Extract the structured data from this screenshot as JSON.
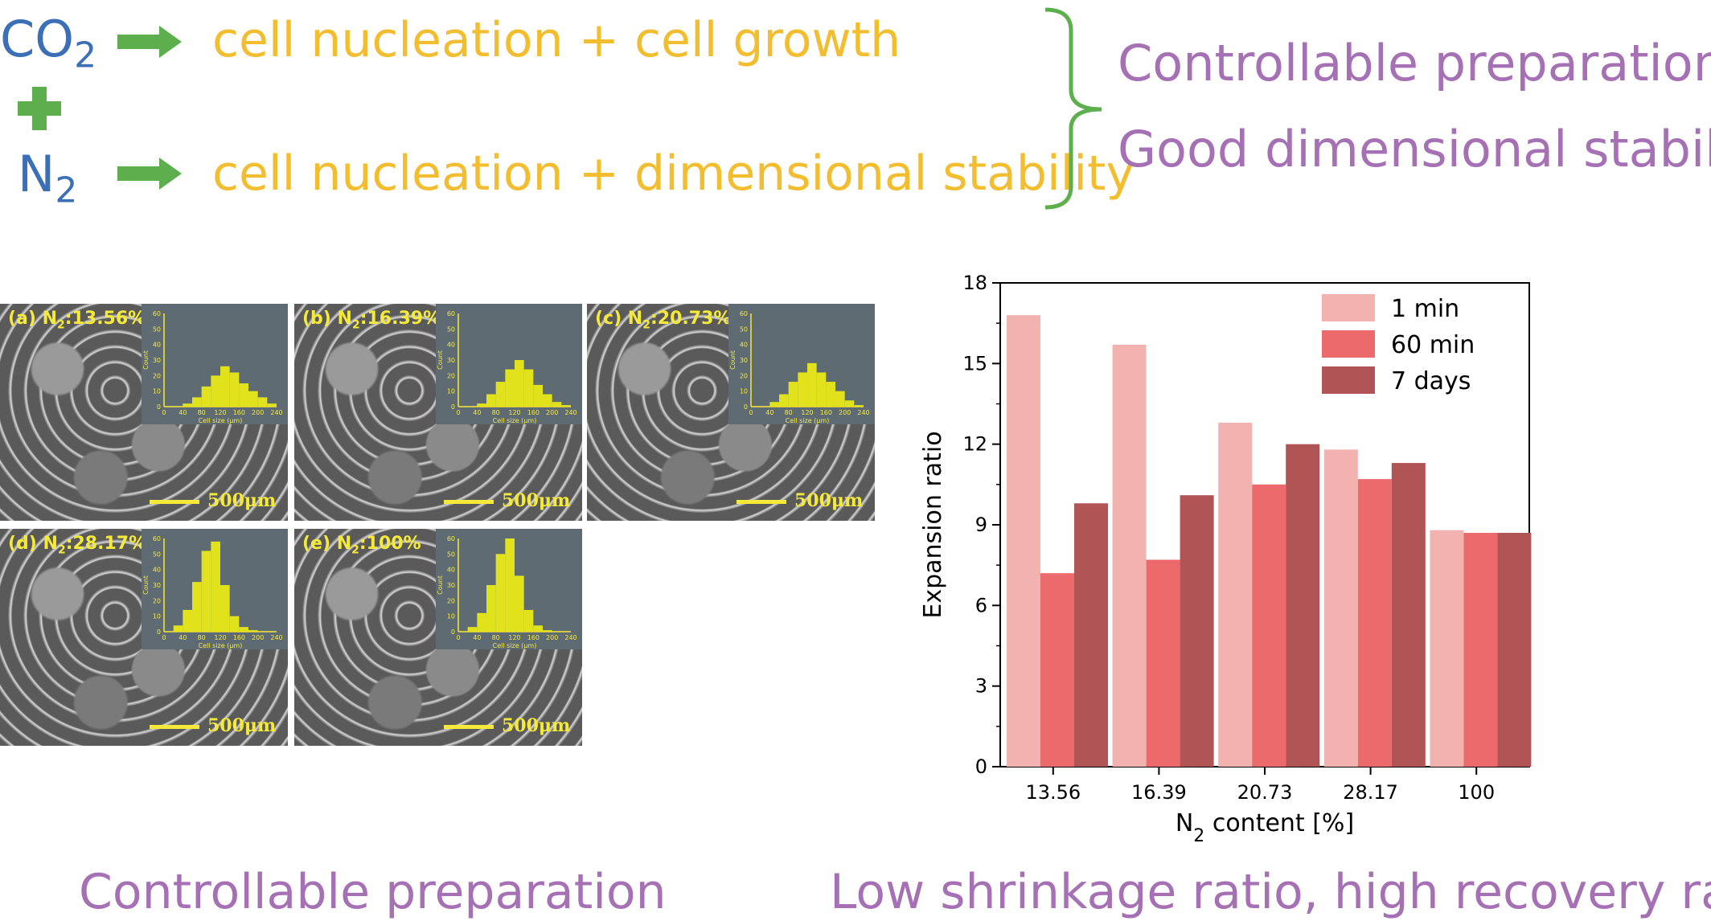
{
  "top": {
    "gas1_main": "CO",
    "gas1_sub": "2",
    "gas2_main": "N",
    "gas2_sub": "2",
    "line1": "cell nucleation + cell growth",
    "line2": "cell nucleation + dimensional stability",
    "result1": "Controllable preparation",
    "result2": "Good dimensional stability"
  },
  "colors": {
    "gas": "#3b6fb6",
    "arrow": "#5daf4d",
    "orange": "#f2bd2e",
    "purple": "#a670b4",
    "bracket": "#5daf4d",
    "sem_label": "#f5ea3a"
  },
  "sem_panels": [
    {
      "label_pre": "(a) N",
      "label_sub": "2",
      "label_post": ":13.56%",
      "scale": "500μm",
      "hist": [
        0,
        0,
        2,
        6,
        13,
        20,
        26,
        22,
        15,
        10,
        6,
        2
      ]
    },
    {
      "label_pre": "(b) N",
      "label_sub": "2",
      "label_post": ":16.39%",
      "scale": "500μm",
      "hist": [
        0,
        0,
        2,
        8,
        16,
        24,
        30,
        24,
        14,
        8,
        3,
        1
      ]
    },
    {
      "label_pre": "(c) N",
      "label_sub": "2",
      "label_post": ":20.73%",
      "scale": "500μm",
      "hist": [
        0,
        0,
        3,
        8,
        16,
        22,
        28,
        22,
        16,
        10,
        4,
        1
      ]
    },
    {
      "label_pre": "(d) N",
      "label_sub": "2",
      "label_post": ":28.17%",
      "scale": "500μm",
      "hist": [
        0,
        4,
        14,
        32,
        52,
        58,
        30,
        10,
        3,
        1,
        0,
        0
      ]
    },
    {
      "label_pre": "(e) N",
      "label_sub": "2",
      "label_post": ":100%",
      "scale": "500μm",
      "hist": [
        0,
        3,
        12,
        30,
        50,
        60,
        36,
        14,
        4,
        1,
        0,
        0
      ]
    }
  ],
  "inset_axes": {
    "ylabel": "Count",
    "xlabel": "Cell size (μm)",
    "yticks": [
      "0",
      "10",
      "20",
      "30",
      "40",
      "50",
      "60"
    ],
    "xticks": [
      "0",
      "40",
      "80",
      "120",
      "160",
      "200",
      "240"
    ]
  },
  "chart_data": {
    "type": "bar",
    "categories": [
      "13.56",
      "16.39",
      "20.73",
      "28.17",
      "100"
    ],
    "series": [
      {
        "name": "1 min",
        "color": "#f2b2b0",
        "values": [
          16.8,
          15.7,
          12.8,
          11.8,
          8.8
        ]
      },
      {
        "name": "60 min",
        "color": "#ec6a6b",
        "values": [
          7.2,
          7.7,
          10.5,
          10.7,
          8.7
        ]
      },
      {
        "name": "7 days",
        "color": "#b15456",
        "values": [
          9.8,
          10.1,
          12.0,
          11.3,
          8.7
        ]
      }
    ],
    "xlabel_main": "N",
    "xlabel_sub": "2",
    "xlabel_post": " content [%]",
    "ylabel": "Expansion ratio",
    "ylim": [
      0,
      18
    ],
    "yticks": [
      "0",
      "3",
      "6",
      "9",
      "12",
      "15",
      "18"
    ],
    "legend_position": "top-right",
    "grid": false
  },
  "bottom": {
    "left_caption": "Controllable preparation",
    "right_caption": "Low shrinkage ratio, high recovery ratio"
  }
}
